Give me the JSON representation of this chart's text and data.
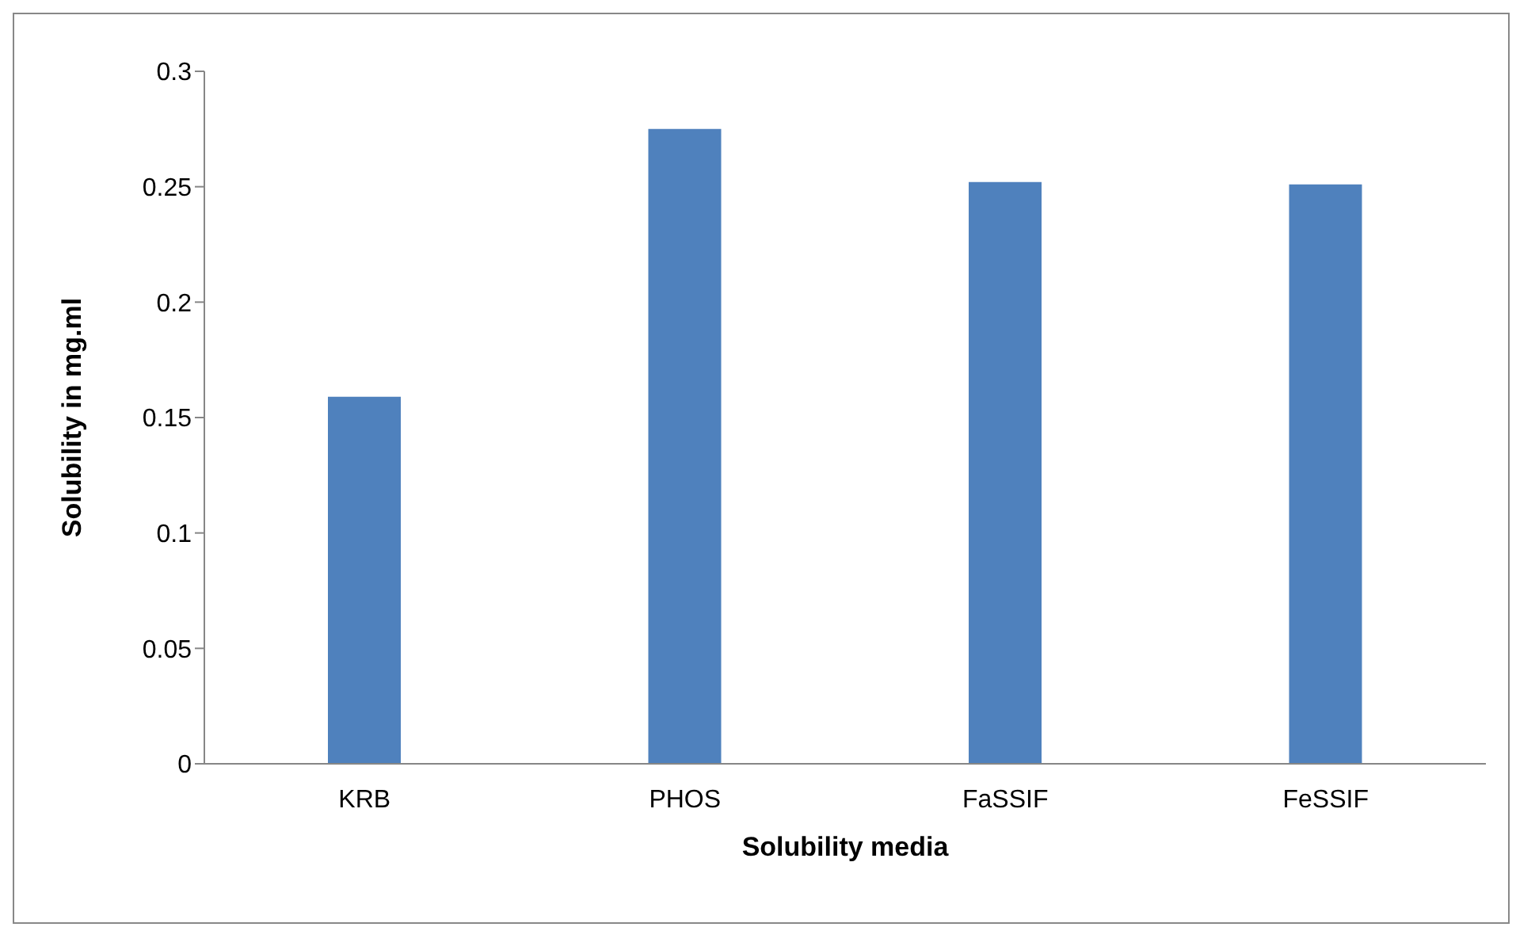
{
  "chart_data": {
    "type": "bar",
    "xlabel": "Solubility media",
    "ylabel": "Solubility in mg.ml",
    "categories": [
      "KRB",
      "PHOS",
      "FaSSIF",
      "FeSSIF"
    ],
    "values": [
      0.159,
      0.275,
      0.252,
      0.251
    ],
    "color": "#4f81bd",
    "ylim": [
      0,
      0.3
    ],
    "yticks": [
      0,
      0.05,
      0.1,
      0.15,
      0.2,
      0.25,
      0.3
    ],
    "grid": false
  }
}
